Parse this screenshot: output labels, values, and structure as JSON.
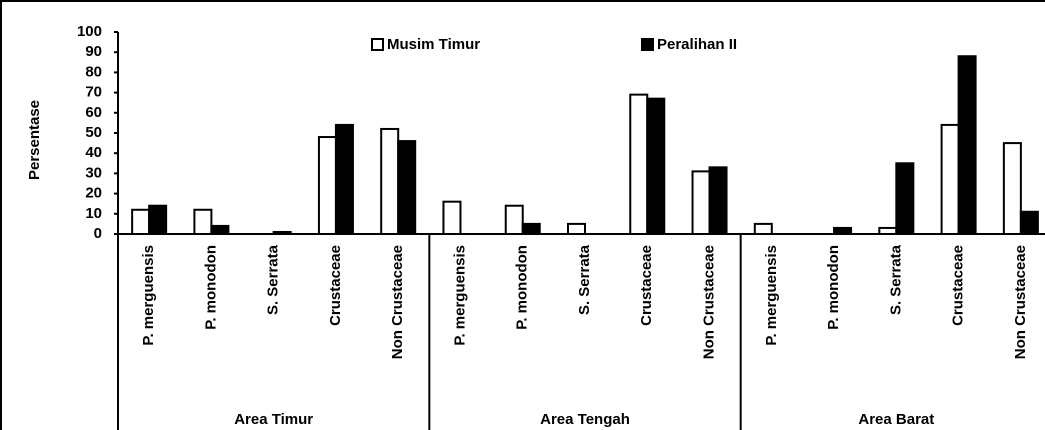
{
  "chart_data": {
    "type": "bar",
    "y_label": "Persentase",
    "categories": [
      "P.  merguensis",
      "P. monodon",
      "S. Serrata",
      "Crustaceae",
      "Non Crustaceae",
      "P.  merguensis",
      "P. monodon",
      "S. Serrata",
      "Crustaceae",
      "Non Crustaceae",
      "P.  merguensis",
      "P. monodon",
      "S. Serrata",
      "Crustaceae",
      "Non Crustaceae"
    ],
    "groups": [
      "Area Timur",
      "Area Tengah",
      "Area Barat"
    ],
    "series": [
      {
        "name": "Musim Timur",
        "color": "#ffffff",
        "values": [
          12,
          12,
          0,
          48,
          52,
          16,
          14,
          5,
          69,
          31,
          5,
          0,
          3,
          54,
          45
        ]
      },
      {
        "name": "Peralihan II",
        "color": "#000000",
        "values": [
          14,
          4,
          1,
          54,
          46,
          0,
          5,
          0,
          67,
          33,
          0,
          3,
          35,
          88,
          11
        ]
      }
    ],
    "ylim": [
      0,
      100
    ],
    "yticks": [
      0,
      10,
      20,
      30,
      40,
      50,
      60,
      70,
      80,
      90,
      100
    ],
    "grid": false
  }
}
